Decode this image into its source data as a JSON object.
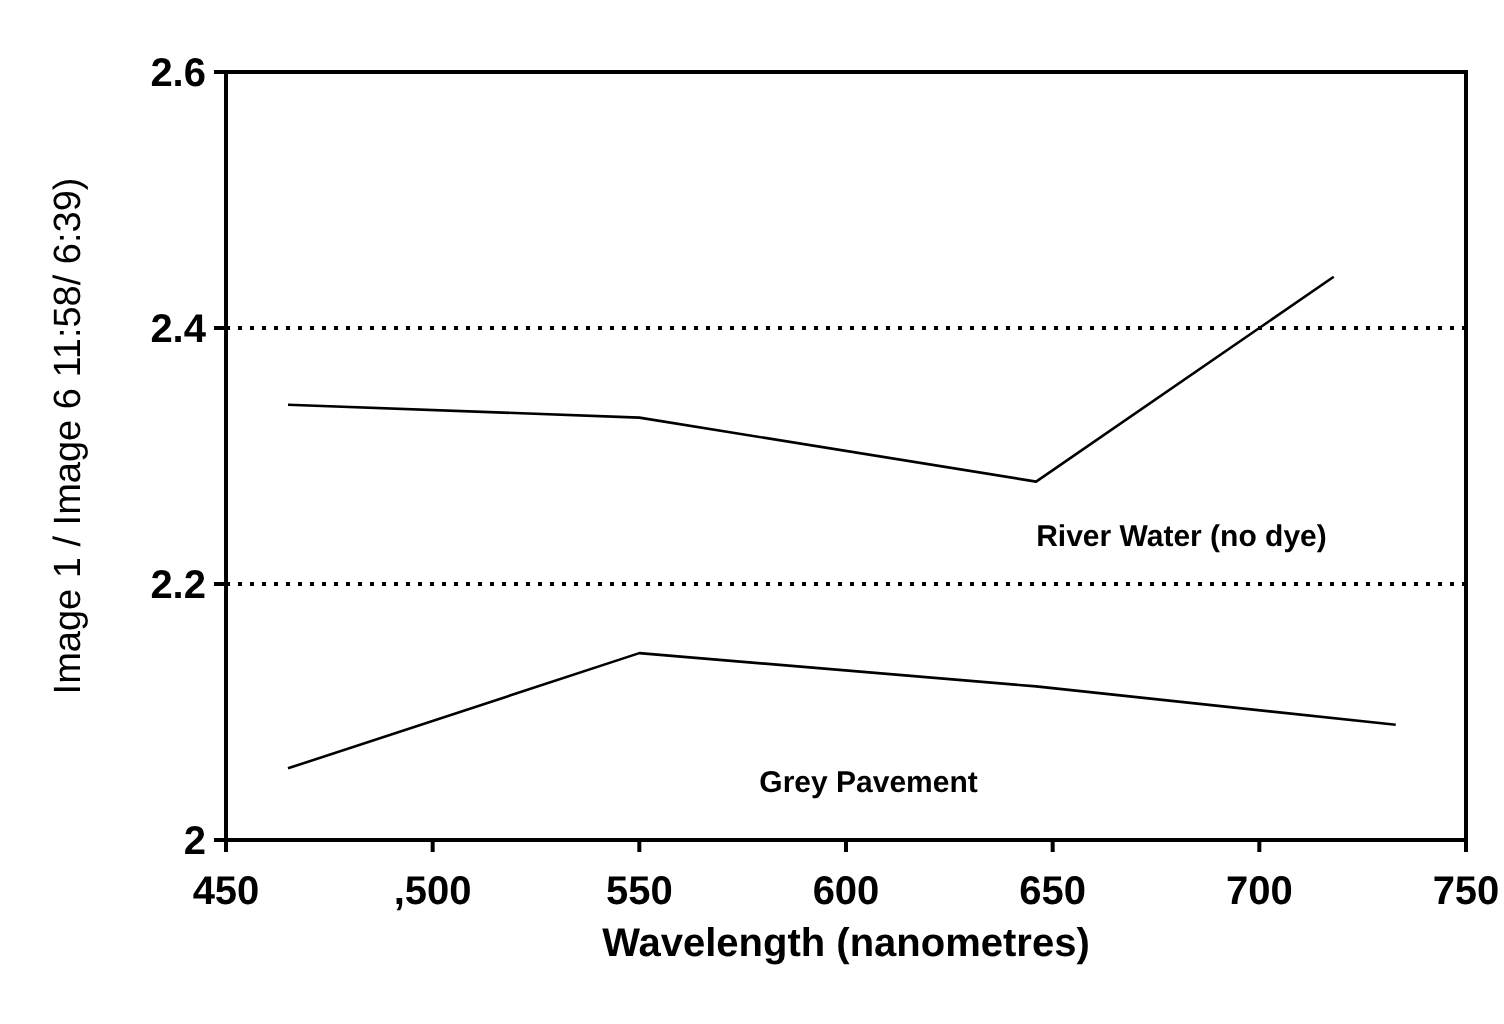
{
  "chart_data": {
    "type": "line",
    "xlabel": "Wavelength (nanometres)",
    "ylabel": "Image 1 / Image 6 11:58/ 6:39)",
    "xlim": [
      450,
      750
    ],
    "xticks": [
      450,
      {
        "value": 500,
        "label": ",500"
      },
      550,
      600,
      650,
      700,
      750
    ],
    "ylim": [
      2,
      2.6
    ],
    "yticks": [
      2,
      2.2,
      2.4,
      2.6
    ],
    "grid": "y",
    "marker": "none",
    "line_style": "solid",
    "series": [
      {
        "name": "River Water (no dye)",
        "color": "#000000",
        "x": [
          465,
          550,
          646,
          718
        ],
        "values": [
          2.34,
          2.33,
          2.28,
          2.44
        ]
      },
      {
        "name": "Grey Pavement",
        "color": "#000000",
        "x": [
          465,
          550,
          646,
          733
        ],
        "values": [
          2.056,
          2.146,
          2.12,
          2.09
        ]
      }
    ]
  }
}
